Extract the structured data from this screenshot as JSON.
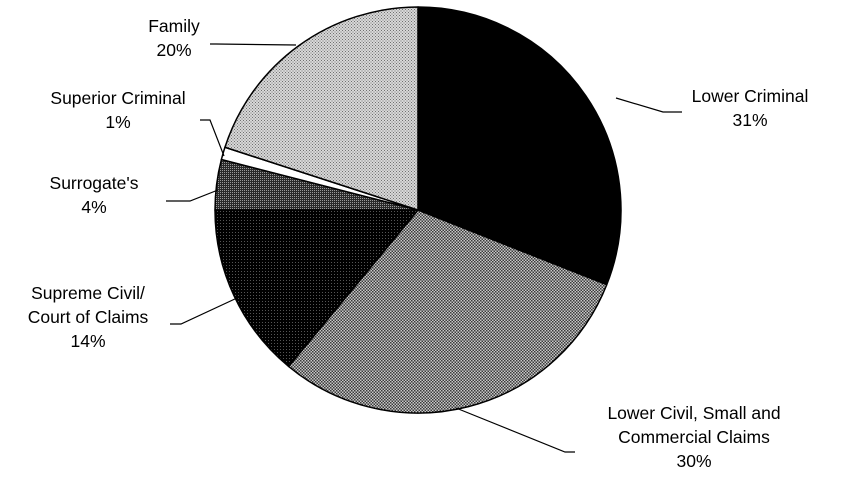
{
  "chart_data": {
    "type": "pie",
    "title": "",
    "start_angle_deg": 90,
    "direction": "clockwise",
    "legend": "none",
    "slices": [
      {
        "name": "Lower Criminal",
        "value": 31,
        "label_lines": [
          "Lower Criminal",
          "31%"
        ],
        "fill": "#000000",
        "pattern": "solid-black"
      },
      {
        "name": "Lower Civil, Small and Commercial Claims",
        "value": 30,
        "label_lines": [
          "Lower Civil, Small and",
          "Commercial Claims",
          "30%"
        ],
        "fill": "#909090",
        "pattern": "dense-dots"
      },
      {
        "name": "Supreme Civil/ Court of Claims",
        "value": 14,
        "label_lines": [
          "Supreme Civil/",
          "Court of Claims",
          "14%"
        ],
        "fill": "#111111",
        "pattern": "dark-dots"
      },
      {
        "name": "Surrogate's",
        "value": 4,
        "label_lines": [
          "Surrogate's",
          "4%"
        ],
        "fill": "#555555",
        "pattern": "medium-dots"
      },
      {
        "name": "Superior Criminal",
        "value": 1,
        "label_lines": [
          "Superior Criminal",
          "1%"
        ],
        "fill": "#ffffff",
        "pattern": "white"
      },
      {
        "name": "Family",
        "value": 20,
        "label_lines": [
          "Family",
          "20%"
        ],
        "fill": "#b8b8b8",
        "pattern": "light-dots"
      }
    ]
  }
}
